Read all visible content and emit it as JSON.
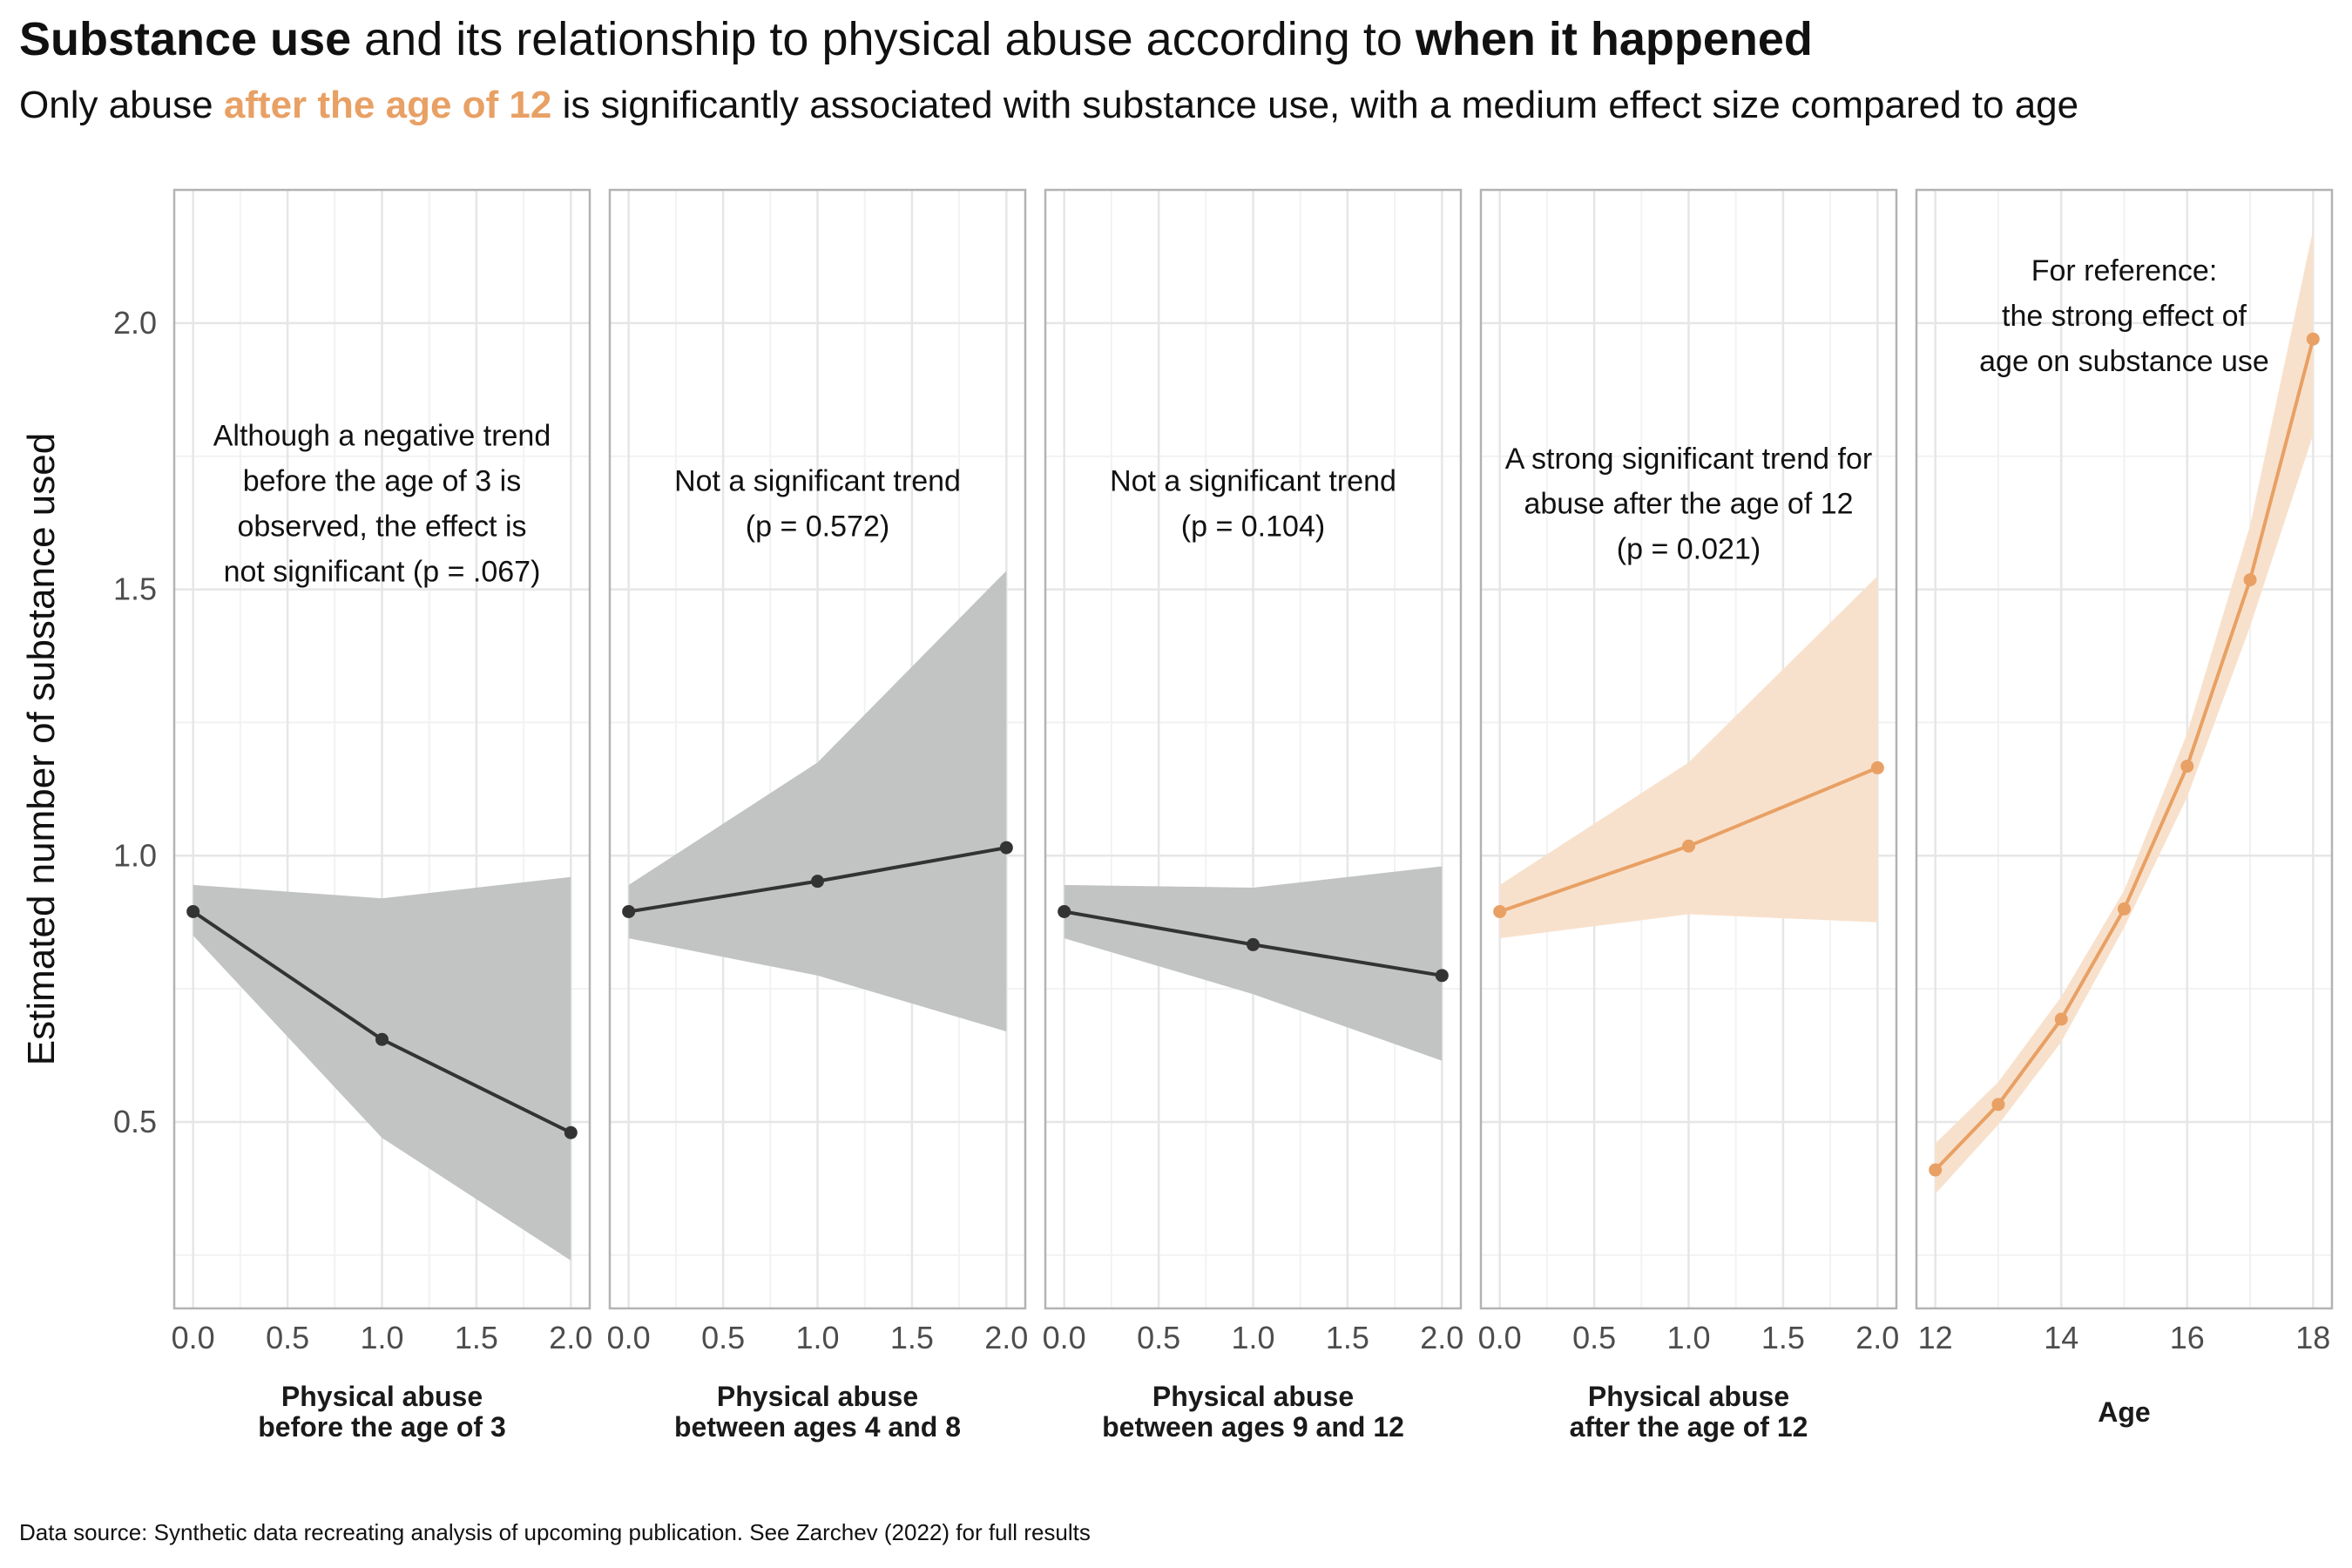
{
  "title": {
    "part1": "Substance use",
    "part2": " and its relationship to physical abuse according to ",
    "part3": "when it happened"
  },
  "subtitle": {
    "part1": "Only abuse ",
    "part2": "after the age of 12",
    "part3": " is significantly associated with substance use, with a medium effect size compared to age",
    "highlight_color": "#e8a064"
  },
  "caption": "Data source: Synthetic data recreating analysis of upcoming publication. See Zarchev (2022) for full results",
  "chart_data": {
    "type": "line",
    "ylabel": "Estimated number of substance used",
    "ylim": [
      0.15,
      2.25
    ],
    "yticks": [
      0.5,
      1.0,
      1.5,
      2.0
    ],
    "ytick_labels": [
      "0.5",
      "1.0",
      "1.5",
      "2.0"
    ],
    "grid": true,
    "colors": {
      "grey_line": "#333333",
      "grey_band": "#c2c4c4",
      "orange_line": "#e8a064",
      "orange_band": "#f8e1cc"
    },
    "panels": [
      {
        "xlabel": [
          "Physical abuse",
          "before the age of 3"
        ],
        "xlim": [
          -0.1,
          2.1
        ],
        "xticks": [
          0,
          0.5,
          1,
          1.5,
          2
        ],
        "xtick_labels": [
          "0.0",
          "0.5",
          "1.0",
          "1.5",
          "2.0"
        ],
        "color": "grey",
        "x": [
          0,
          1,
          2
        ],
        "y": [
          0.895,
          0.655,
          0.48
        ],
        "ci_low": [
          0.85,
          0.47,
          0.24
        ],
        "ci_high": [
          0.945,
          0.92,
          0.96
        ],
        "annotation": [
          "Although a negative trend",
          "before the age of 3 is",
          "observed, the effect is",
          "not significant (p = .067)"
        ],
        "annotation_x": 1.0,
        "annotation_y": [
          1.77,
          1.685,
          1.6,
          1.515
        ]
      },
      {
        "xlabel": [
          "Physical abuse",
          "between ages 4 and 8"
        ],
        "xlim": [
          -0.1,
          2.1
        ],
        "xticks": [
          0,
          0.5,
          1,
          1.5,
          2
        ],
        "xtick_labels": [
          "0.0",
          "0.5",
          "1.0",
          "1.5",
          "2.0"
        ],
        "color": "grey",
        "x": [
          0,
          1,
          2
        ],
        "y": [
          0.895,
          0.952,
          1.015
        ],
        "ci_low": [
          0.845,
          0.775,
          0.67
        ],
        "ci_high": [
          0.945,
          1.175,
          1.535
        ],
        "annotation": [
          "Not a significant trend",
          "(p = 0.572)"
        ],
        "annotation_x": 1.0,
        "annotation_y": [
          1.685,
          1.6
        ]
      },
      {
        "xlabel": [
          "Physical abuse",
          "between ages 9 and 12"
        ],
        "xlim": [
          -0.1,
          2.1
        ],
        "xticks": [
          0,
          0.5,
          1,
          1.5,
          2
        ],
        "xtick_labels": [
          "0.0",
          "0.5",
          "1.0",
          "1.5",
          "2.0"
        ],
        "color": "grey",
        "x": [
          0,
          1,
          2
        ],
        "y": [
          0.895,
          0.833,
          0.775
        ],
        "ci_low": [
          0.845,
          0.74,
          0.615
        ],
        "ci_high": [
          0.945,
          0.94,
          0.98
        ],
        "annotation": [
          "Not a significant trend",
          "(p = 0.104)"
        ],
        "annotation_x": 1.0,
        "annotation_y": [
          1.685,
          1.6
        ]
      },
      {
        "xlabel": [
          "Physical abuse",
          "after the age of 12"
        ],
        "xlim": [
          -0.1,
          2.1
        ],
        "xticks": [
          0,
          0.5,
          1,
          1.5,
          2
        ],
        "xtick_labels": [
          "0.0",
          "0.5",
          "1.0",
          "1.5",
          "2.0"
        ],
        "color": "orange",
        "x": [
          0,
          1,
          2
        ],
        "y": [
          0.895,
          1.018,
          1.165
        ],
        "ci_low": [
          0.845,
          0.89,
          0.875
        ],
        "ci_high": [
          0.945,
          1.175,
          1.525
        ],
        "annotation": [
          "A strong significant trend for",
          "abuse after the age of 12",
          "(p = 0.021)"
        ],
        "annotation_x": 1.0,
        "annotation_y": [
          1.727,
          1.642,
          1.557
        ]
      },
      {
        "xlabel": [
          "Age"
        ],
        "xlim": [
          11.7,
          18.3
        ],
        "xticks": [
          12,
          14,
          16,
          18
        ],
        "xtick_labels": [
          "12",
          "14",
          "16",
          "18"
        ],
        "color": "orange",
        "x": [
          12,
          13,
          14,
          15,
          16,
          17,
          18
        ],
        "y": [
          0.41,
          0.533,
          0.693,
          0.9,
          1.168,
          1.518,
          1.97
        ],
        "ci_low": [
          0.365,
          0.495,
          0.65,
          0.865,
          1.11,
          1.43,
          1.79
        ],
        "ci_high": [
          0.46,
          0.575,
          0.735,
          0.935,
          1.23,
          1.62,
          2.175
        ],
        "annotation": [
          "For reference:",
          "the strong effect of",
          "age on substance use"
        ],
        "annotation_x": 15.0,
        "annotation_y": [
          2.08,
          1.995,
          1.91
        ]
      }
    ]
  }
}
